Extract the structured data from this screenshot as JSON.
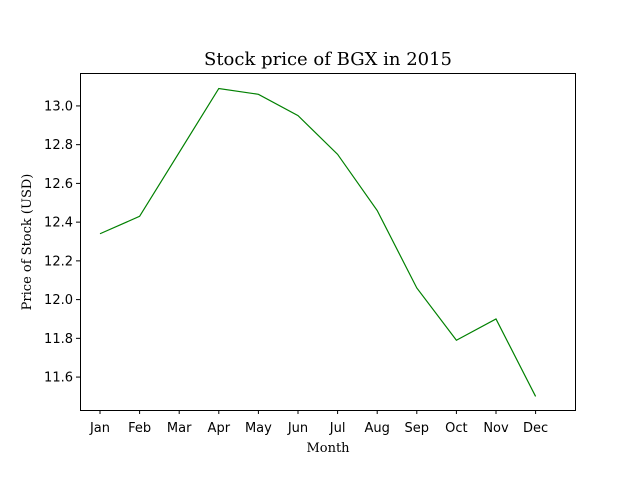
{
  "chart_data": {
    "type": "line",
    "title": "Stock price of BGX in 2015",
    "xlabel": "Month",
    "ylabel": "Price of Stock (USD)",
    "categories": [
      "Jan",
      "Feb",
      "Mar",
      "Apr",
      "May",
      "Jun",
      "Jul",
      "Aug",
      "Sep",
      "Oct",
      "Nov",
      "Dec"
    ],
    "series": [
      {
        "values": [
          12.34,
          12.43,
          12.76,
          13.09,
          13.06,
          12.95,
          12.75,
          12.46,
          12.06,
          11.79,
          11.9,
          11.5
        ],
        "color": "#008000"
      }
    ],
    "ylim": [
      11.43,
      13.17
    ],
    "yticks": [
      "11.6",
      "11.8",
      "12.0",
      "12.2",
      "12.4",
      "12.6",
      "12.8",
      "13.0"
    ],
    "grid": false,
    "legend": false
  }
}
